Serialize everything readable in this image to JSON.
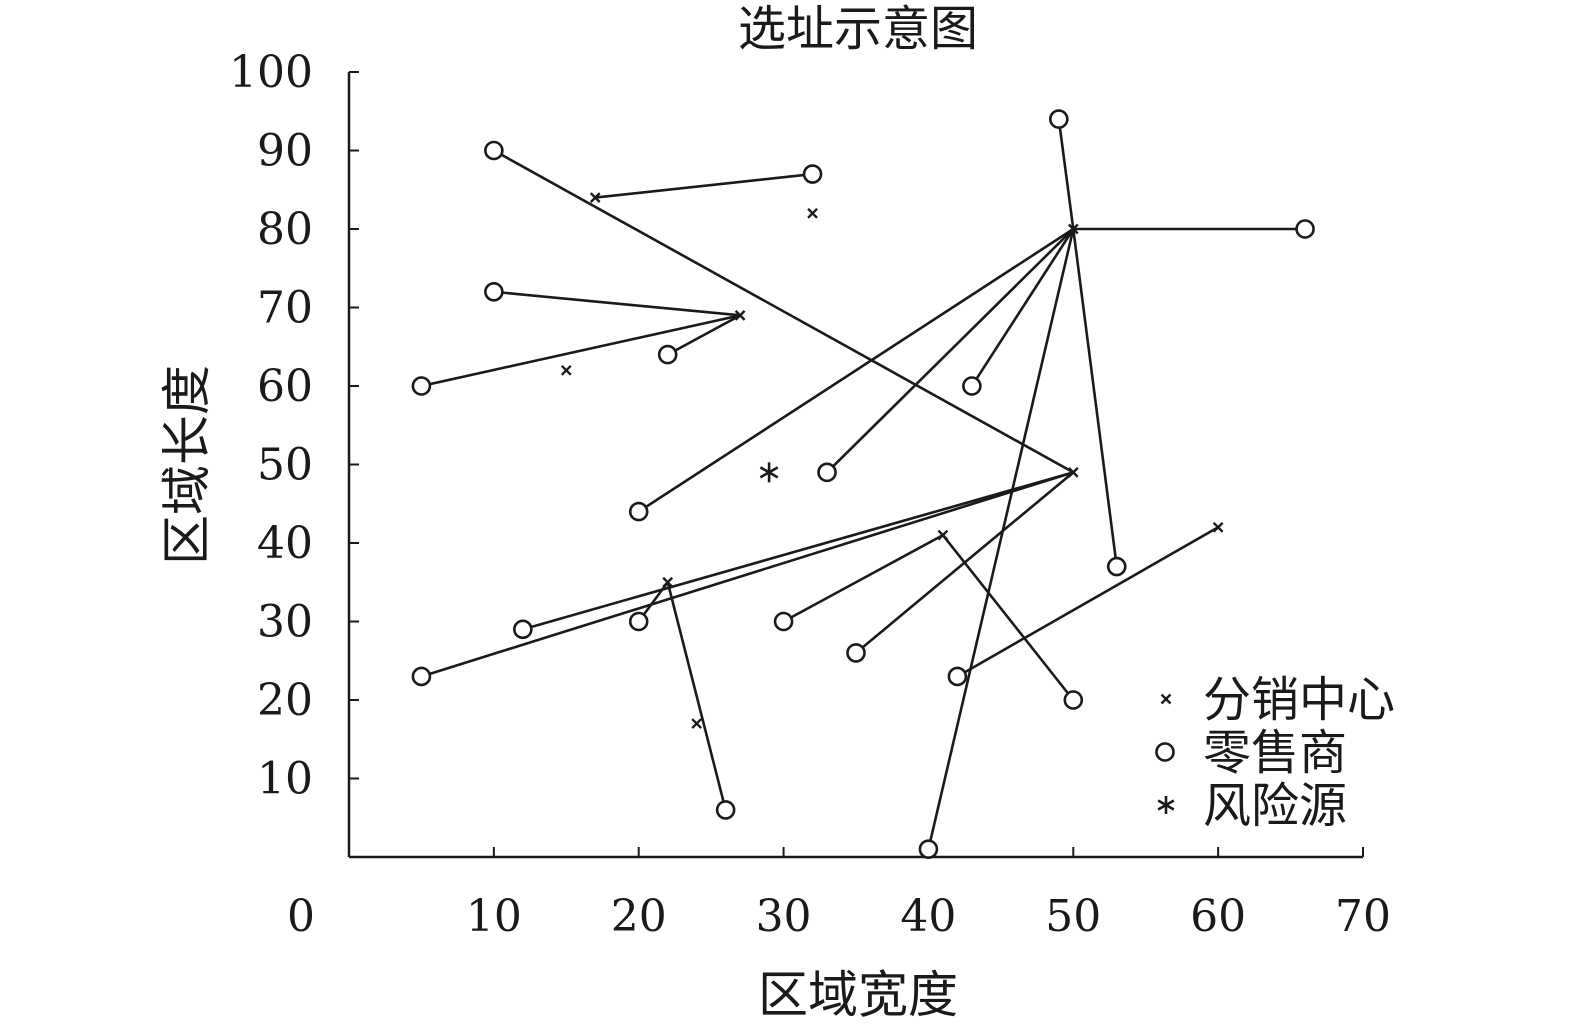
{
  "chart_data": {
    "type": "scatter",
    "title": "选址示意图",
    "xlabel": "区域宽度",
    "ylabel": "区域长度",
    "xlim": [
      0,
      70
    ],
    "ylim": [
      0,
      100
    ],
    "x_ticks": [
      0,
      10,
      20,
      30,
      40,
      50,
      60,
      70
    ],
    "y_ticks": [
      10,
      20,
      30,
      40,
      50,
      60,
      70,
      80,
      90,
      100
    ],
    "grid": false,
    "legend_position": "bottom-right",
    "legend": [
      "分销中心",
      "零售商",
      "风险源"
    ],
    "distribution_centers": [
      {
        "x": 17,
        "y": 84
      },
      {
        "x": 32,
        "y": 82
      },
      {
        "x": 27,
        "y": 69
      },
      {
        "x": 15,
        "y": 62
      },
      {
        "x": 50,
        "y": 80
      },
      {
        "x": 50,
        "y": 49
      },
      {
        "x": 41,
        "y": 41
      },
      {
        "x": 60,
        "y": 42
      },
      {
        "x": 22,
        "y": 35
      },
      {
        "x": 24,
        "y": 17
      }
    ],
    "retailers": [
      {
        "x": 10,
        "y": 90
      },
      {
        "x": 32,
        "y": 87
      },
      {
        "x": 49,
        "y": 94
      },
      {
        "x": 66,
        "y": 80
      },
      {
        "x": 10,
        "y": 72
      },
      {
        "x": 22,
        "y": 64
      },
      {
        "x": 5,
        "y": 60
      },
      {
        "x": 43,
        "y": 60
      },
      {
        "x": 33,
        "y": 49
      },
      {
        "x": 20,
        "y": 44
      },
      {
        "x": 53,
        "y": 37
      },
      {
        "x": 12,
        "y": 29
      },
      {
        "x": 20,
        "y": 30
      },
      {
        "x": 30,
        "y": 30
      },
      {
        "x": 35,
        "y": 26
      },
      {
        "x": 5,
        "y": 23
      },
      {
        "x": 42,
        "y": 23
      },
      {
        "x": 50,
        "y": 20
      },
      {
        "x": 26,
        "y": 6
      },
      {
        "x": 40,
        "y": 1
      }
    ],
    "risk_sources": [
      {
        "x": 29,
        "y": 49
      }
    ],
    "links": [
      {
        "from": [
          32,
          87
        ],
        "to": [
          17,
          84
        ]
      },
      {
        "from": [
          10,
          90
        ],
        "to": [
          50,
          49
        ]
      },
      {
        "from": [
          49,
          94
        ],
        "to": [
          50,
          80
        ]
      },
      {
        "from": [
          66,
          80
        ],
        "to": [
          50,
          80
        ]
      },
      {
        "from": [
          10,
          72
        ],
        "to": [
          27,
          69
        ]
      },
      {
        "from": [
          5,
          60
        ],
        "to": [
          27,
          69
        ]
      },
      {
        "from": [
          22,
          64
        ],
        "to": [
          27,
          69
        ]
      },
      {
        "from": [
          43,
          60
        ],
        "to": [
          50,
          80
        ]
      },
      {
        "from": [
          33,
          49
        ],
        "to": [
          50,
          80
        ]
      },
      {
        "from": [
          20,
          44
        ],
        "to": [
          50,
          80
        ]
      },
      {
        "from": [
          53,
          37
        ],
        "to": [
          50,
          80
        ]
      },
      {
        "from": [
          40,
          1
        ],
        "to": [
          50,
          80
        ]
      },
      {
        "from": [
          12,
          29
        ],
        "to": [
          50,
          49
        ]
      },
      {
        "from": [
          5,
          23
        ],
        "to": [
          50,
          49
        ]
      },
      {
        "from": [
          35,
          26
        ],
        "to": [
          50,
          49
        ]
      },
      {
        "from": [
          20,
          30
        ],
        "to": [
          22,
          35
        ]
      },
      {
        "from": [
          26,
          6
        ],
        "to": [
          22,
          35
        ]
      },
      {
        "from": [
          30,
          30
        ],
        "to": [
          41,
          41
        ]
      },
      {
        "from": [
          50,
          20
        ],
        "to": [
          41,
          41
        ]
      },
      {
        "from": [
          42,
          23
        ],
        "to": [
          60,
          42
        ]
      }
    ]
  }
}
